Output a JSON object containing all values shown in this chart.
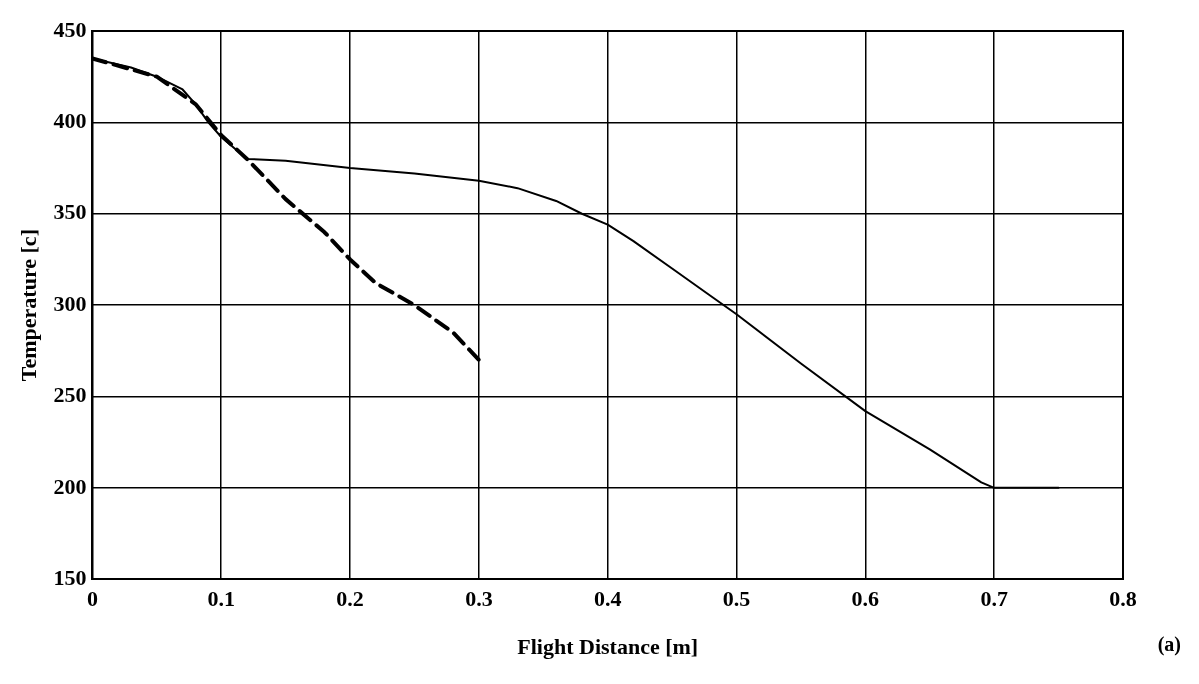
{
  "chart_data": {
    "type": "line",
    "xlabel": "Flight Distance [m]",
    "ylabel": "Temperature [c]",
    "annotations": [
      "(a)"
    ],
    "xlim": [
      0,
      0.8
    ],
    "xticks": [
      0,
      0.1,
      0.2,
      0.3,
      0.4,
      0.5,
      0.6,
      0.7,
      0.8
    ],
    "ylim": [
      150,
      450
    ],
    "yticks": [
      150,
      200,
      250,
      300,
      350,
      400,
      450
    ],
    "grid": true,
    "legend": false,
    "marker": "none",
    "series": [
      {
        "color": "#000000",
        "line_style": "solid",
        "x": [
          0,
          0.03,
          0.05,
          0.07,
          0.08,
          0.09,
          0.1,
          0.12,
          0.15,
          0.2,
          0.25,
          0.3,
          0.33,
          0.36,
          0.38,
          0.4,
          0.42,
          0.45,
          0.48,
          0.5,
          0.55,
          0.6,
          0.65,
          0.69,
          0.7,
          0.75
        ],
        "values": [
          435,
          430,
          425,
          418,
          410,
          400,
          392,
          380,
          379,
          375,
          372,
          368,
          364,
          357,
          350,
          344,
          335,
          320,
          305,
          295,
          268,
          242,
          221,
          203,
          200,
          200
        ]
      },
      {
        "color": "#000000",
        "line_style": "dashed",
        "x": [
          0,
          0.05,
          0.08,
          0.1,
          0.12,
          0.15,
          0.18,
          0.2,
          0.22,
          0.25,
          0.28,
          0.3
        ],
        "values": [
          435,
          425,
          410,
          393,
          380,
          358,
          340,
          325,
          312,
          300,
          285,
          270
        ]
      }
    ]
  }
}
